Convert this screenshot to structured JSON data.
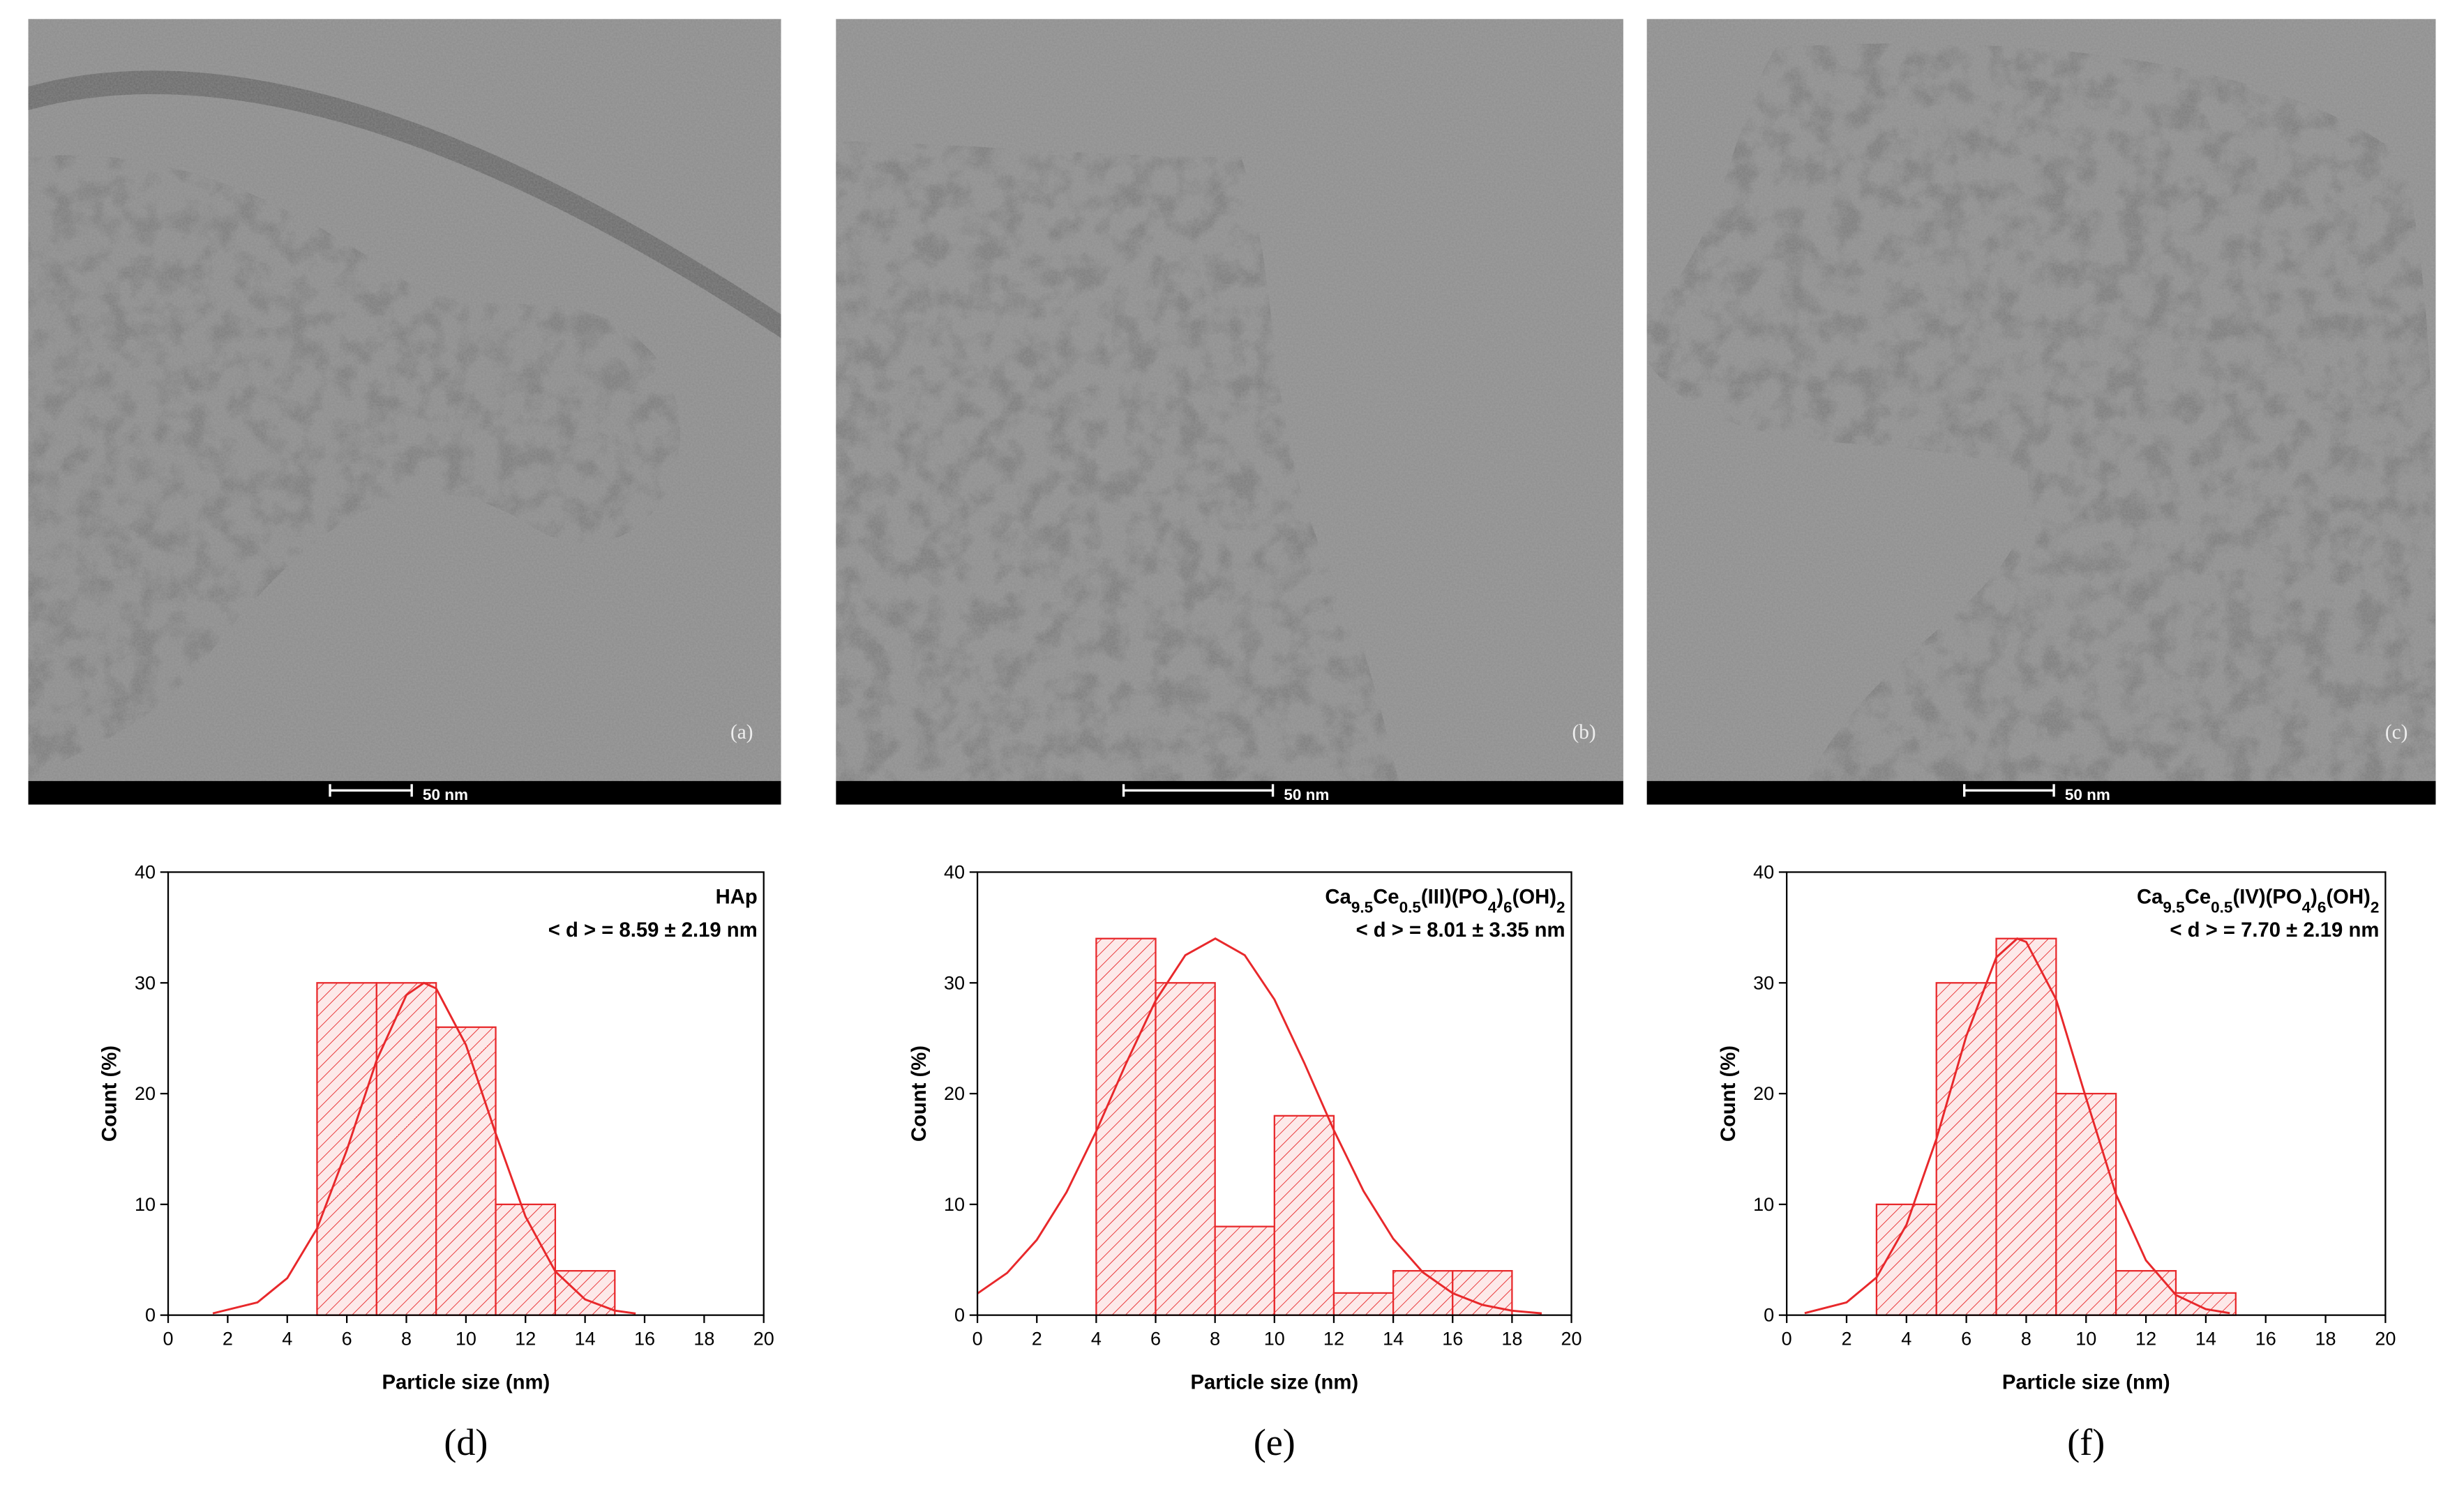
{
  "images": [
    {
      "label": "(a)",
      "scale_bar": "50 nm"
    },
    {
      "label": "(b)",
      "scale_bar": "50 nm"
    },
    {
      "label": "(c)",
      "scale_bar": "50 nm"
    }
  ],
  "chart_data": [
    {
      "type": "histogram",
      "caption": "(d)",
      "label_parts": [
        "HAp"
      ],
      "annotation": "< d > = 8.59 ± 2.19 nm",
      "x_label": "Particle size (nm)",
      "y_label": "Count (%)",
      "color": "#e8282b",
      "bins": [
        5,
        7,
        9,
        11,
        13,
        15
      ],
      "values": [
        30,
        30,
        26,
        10,
        4
      ],
      "fit": {
        "x": [
          1.5,
          3,
          4,
          5,
          6,
          7,
          8,
          8.59,
          9,
          10,
          11,
          12,
          13,
          14,
          15,
          15.7
        ],
        "y": [
          0.16,
          1.15,
          3.34,
          7.82,
          14.9,
          23.0,
          28.9,
          30,
          29.5,
          24.4,
          16.4,
          8.9,
          3.95,
          1.42,
          0.41,
          0.15
        ]
      },
      "xlim": [
        0,
        20
      ],
      "xticks": [
        0,
        2,
        4,
        6,
        8,
        10,
        12,
        14,
        16,
        18,
        20
      ],
      "ylim": [
        0,
        40
      ],
      "yticks": [
        0,
        10,
        20,
        30,
        40
      ]
    },
    {
      "type": "histogram",
      "caption": "(e)",
      "label_parts": [
        "Ca",
        "9.5",
        "Ce",
        "0.5",
        "(III)(PO",
        "4",
        ")",
        "6",
        "(OH)",
        "2"
      ],
      "annotation": "< d > = 8.01 ± 3.35 nm",
      "x_label": "Particle size (nm)",
      "y_label": "Count (%)",
      "color": "#e8282b",
      "bins": [
        4,
        6,
        8,
        10,
        12,
        14,
        16,
        18
      ],
      "values": [
        34,
        30,
        8,
        18,
        2,
        4,
        4
      ],
      "fit": {
        "x": [
          0,
          1,
          2,
          3,
          4,
          5,
          6,
          7,
          8.01,
          9,
          10,
          11,
          12,
          13,
          14,
          15,
          16,
          17,
          18,
          19
        ],
        "y": [
          1.95,
          3.81,
          6.8,
          11.1,
          16.6,
          22.7,
          28.4,
          32.5,
          34,
          32.5,
          28.5,
          22.8,
          16.7,
          11.2,
          6.9,
          3.86,
          1.98,
          0.93,
          0.4,
          0.16
        ]
      },
      "xlim": [
        0,
        20
      ],
      "xticks": [
        0,
        2,
        4,
        6,
        8,
        10,
        12,
        14,
        16,
        18,
        20
      ],
      "ylim": [
        0,
        40
      ],
      "yticks": [
        0,
        10,
        20,
        30,
        40
      ]
    },
    {
      "type": "histogram",
      "caption": "(f)",
      "label_parts": [
        "Ca",
        "9.5",
        "Ce",
        "0.5",
        "(IV)(PO",
        "4",
        ")",
        "6",
        "(OH)",
        "2"
      ],
      "annotation": "< d > = 7.70 ± 2.19 nm",
      "x_label": "Particle size (nm)",
      "y_label": "Count (%)",
      "color": "#e8282b",
      "bins": [
        3,
        5,
        7,
        9,
        11,
        13,
        15
      ],
      "values": [
        10,
        30,
        34,
        20,
        4,
        2
      ],
      "fit": {
        "x": [
          0.6,
          2,
          3,
          4,
          5,
          6,
          7,
          7.7,
          8,
          9,
          10,
          11,
          12,
          13,
          14,
          14.8
        ],
        "y": [
          0.18,
          1.15,
          3.4,
          8.16,
          15.9,
          25.2,
          32.3,
          34,
          33.7,
          28.5,
          19.6,
          10.9,
          4.95,
          1.82,
          0.54,
          0.18
        ]
      },
      "xlim": [
        0,
        20
      ],
      "xticks": [
        0,
        2,
        4,
        6,
        8,
        10,
        12,
        14,
        16,
        18,
        20
      ],
      "ylim": [
        0,
        40
      ],
      "yticks": [
        0,
        10,
        20,
        30,
        40
      ]
    }
  ]
}
